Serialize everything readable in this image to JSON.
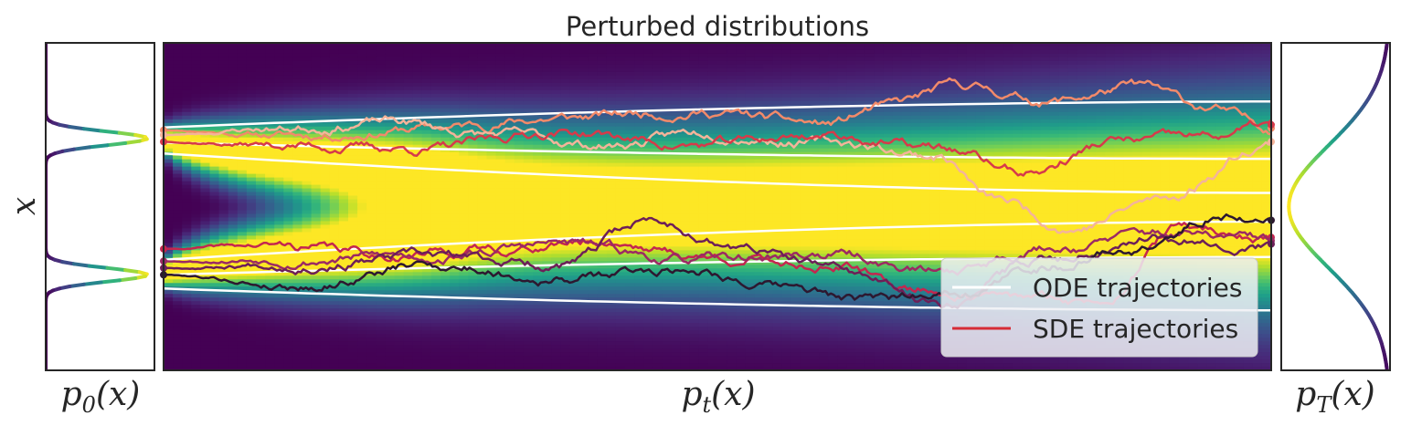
{
  "chart_data": {
    "type": "heatmap",
    "title": "Perturbed distributions",
    "ylabel": "x",
    "panels": {
      "left_label": {
        "base": "p",
        "sub": "0",
        "arg": "(x)"
      },
      "middle_label": {
        "base": "p",
        "sub": "t",
        "arg": "(x)"
      },
      "right_label": {
        "base": "p",
        "sub": "T",
        "arg": "(x)"
      }
    },
    "x_range": [
      0,
      1
    ],
    "y_range": [
      -2.4,
      2.4
    ],
    "initial_modes": [
      1.0,
      -1.0
    ],
    "initial_std": 0.1,
    "final_std": 0.9,
    "colormap": "viridis",
    "grid": false,
    "legend": {
      "placement": "lower-right",
      "entries": [
        {
          "label": "ODE trajectories",
          "color": "#ffffff"
        },
        {
          "label": "SDE trajectories",
          "color": "#d62b36"
        }
      ]
    },
    "ode_trajectories": [
      {
        "y0": 1.16,
        "y1": 1.54
      },
      {
        "y0": 0.94,
        "y1": 0.7
      },
      {
        "y0": 0.78,
        "y1": 0.2
      },
      {
        "y0": -0.78,
        "y1": -0.22
      },
      {
        "y0": -1.0,
        "y1": -0.74
      },
      {
        "y0": -1.2,
        "y1": -1.52
      }
    ],
    "sde_trajectories": [
      {
        "color": "#f28a6a",
        "seed": 11,
        "x": [
          0,
          0.12,
          0.24,
          0.36,
          0.48,
          0.6,
          0.65,
          0.72,
          0.8,
          0.88,
          0.94,
          1.0
        ],
        "y": [
          1.12,
          1.05,
          1.15,
          1.3,
          1.4,
          1.2,
          1.45,
          1.75,
          1.55,
          1.75,
          1.45,
          1.15
        ]
      },
      {
        "color": "#f4b49a",
        "seed": 23,
        "x": [
          0,
          0.1,
          0.2,
          0.3,
          0.4,
          0.5,
          0.6,
          0.7,
          0.75,
          0.82,
          0.9,
          1.0
        ],
        "y": [
          1.05,
          1.15,
          1.25,
          1.05,
          0.9,
          1.1,
          0.95,
          0.75,
          0.1,
          -0.3,
          0.1,
          0.95
        ]
      },
      {
        "color": "#d63a4a",
        "seed": 37,
        "x": [
          0,
          0.12,
          0.24,
          0.36,
          0.48,
          0.6,
          0.7,
          0.78,
          0.86,
          0.94,
          1.0
        ],
        "y": [
          0.95,
          0.9,
          0.85,
          1.1,
          0.9,
          1.05,
          0.85,
          0.5,
          0.95,
          1.0,
          1.2
        ]
      },
      {
        "color": "#c4264f",
        "seed": 41,
        "x": [
          0,
          0.1,
          0.2,
          0.3,
          0.4,
          0.5,
          0.6,
          0.68,
          0.76,
          0.84,
          0.92,
          1.0
        ],
        "y": [
          -0.62,
          -0.58,
          -0.7,
          -0.62,
          -0.5,
          -0.75,
          -0.85,
          -1.2,
          -1.35,
          -1.4,
          -0.3,
          -0.45
        ]
      },
      {
        "color": "#9c2a63",
        "seed": 53,
        "x": [
          0,
          0.12,
          0.24,
          0.36,
          0.48,
          0.6,
          0.7,
          0.8,
          0.9,
          1.0
        ],
        "y": [
          -0.8,
          -0.75,
          -0.72,
          -0.55,
          -0.8,
          -0.7,
          -0.95,
          -0.6,
          -0.4,
          -0.5
        ]
      },
      {
        "color": "#6d1f58",
        "seed": 67,
        "x": [
          0,
          0.12,
          0.24,
          0.36,
          0.44,
          0.52,
          0.6,
          0.7,
          0.8,
          0.9,
          1.0
        ],
        "y": [
          -0.9,
          -0.82,
          -0.75,
          -0.85,
          -0.2,
          -0.6,
          -0.9,
          -1.4,
          -0.75,
          -0.4,
          -0.55
        ]
      },
      {
        "color": "#2d1830",
        "seed": 79,
        "x": [
          0,
          0.12,
          0.24,
          0.36,
          0.48,
          0.56,
          0.64,
          0.72,
          0.8,
          0.88,
          0.96,
          1.0
        ],
        "y": [
          -1.0,
          -1.15,
          -0.85,
          -1.05,
          -0.9,
          -1.2,
          -1.4,
          -1.2,
          -0.85,
          -0.6,
          -0.1,
          -0.2
        ]
      }
    ]
  }
}
